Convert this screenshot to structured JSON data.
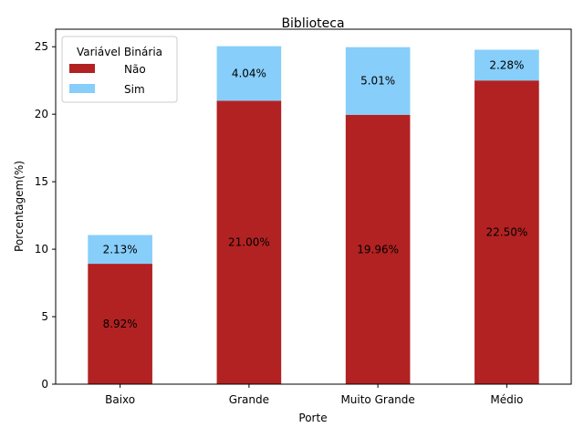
{
  "chart_data": {
    "type": "bar",
    "stacked": true,
    "title": "Biblioteca",
    "xlabel": "Porte",
    "ylabel": "Porcentagem(%)",
    "categories": [
      "Baixo",
      "Grande",
      "Muito Grande",
      "Médio"
    ],
    "series": [
      {
        "name": "Não",
        "color": "#b22222",
        "values": [
          8.92,
          21.0,
          19.96,
          22.5
        ],
        "labels": [
          "8.92%",
          "21.00%",
          "19.96%",
          "22.50%"
        ]
      },
      {
        "name": "Sim",
        "color": "#87cefa",
        "values": [
          2.13,
          4.04,
          5.01,
          2.28
        ],
        "labels": [
          "2.13%",
          "4.04%",
          "5.01%",
          "2.28%"
        ]
      }
    ],
    "ylim": [
      0,
      26.3
    ],
    "yticks": [
      0,
      5,
      10,
      15,
      20,
      25
    ],
    "legend": {
      "title": "Variável Binária",
      "position": "top-left"
    },
    "grid": false
  }
}
